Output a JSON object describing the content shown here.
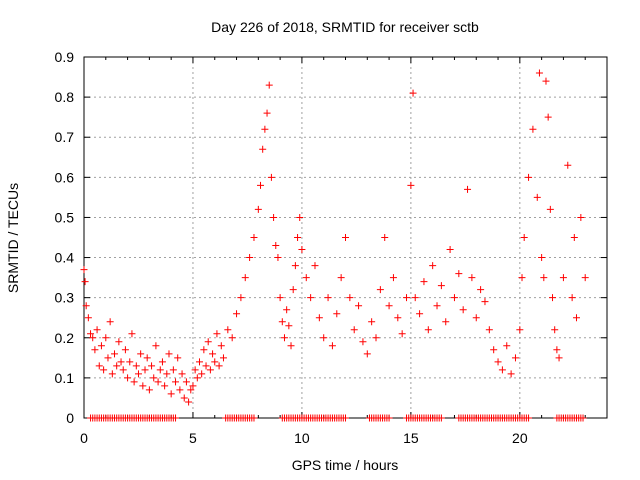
{
  "chart_data": {
    "type": "scatter",
    "title": "Day 226 of 2018, SRMTID for receiver sctb",
    "xlabel": "GPS time / hours",
    "ylabel": "SRMTID / TECUs",
    "xlim": [
      0,
      24
    ],
    "ylim": [
      0,
      0.9
    ],
    "x_ticks": [
      0,
      5,
      10,
      15,
      20
    ],
    "x_tick_labels": [
      "0",
      "5",
      "10",
      "15",
      "20"
    ],
    "y_ticks": [
      0,
      0.1,
      0.2,
      0.3,
      0.4,
      0.5,
      0.6,
      0.7,
      0.8,
      0.9
    ],
    "y_tick_labels": [
      "0",
      "0.1",
      "0.2",
      "0.3",
      "0.4",
      "0.5",
      "0.6",
      "0.7",
      "0.8",
      "0.9"
    ],
    "grid": true,
    "marker": "+",
    "series": [
      {
        "name": "SRMTID",
        "color": "#ff0000",
        "points": [
          [
            0.0,
            0.37
          ],
          [
            0.05,
            0.34
          ],
          [
            0.1,
            0.28
          ],
          [
            0.2,
            0.25
          ],
          [
            0.3,
            0.21
          ],
          [
            0.4,
            0.2
          ],
          [
            0.5,
            0.17
          ],
          [
            0.6,
            0.22
          ],
          [
            0.7,
            0.13
          ],
          [
            0.8,
            0.18
          ],
          [
            0.9,
            0.12
          ],
          [
            1.0,
            0.2
          ],
          [
            1.1,
            0.15
          ],
          [
            1.2,
            0.24
          ],
          [
            1.3,
            0.11
          ],
          [
            1.4,
            0.16
          ],
          [
            1.5,
            0.13
          ],
          [
            1.6,
            0.19
          ],
          [
            1.7,
            0.14
          ],
          [
            1.8,
            0.12
          ],
          [
            1.9,
            0.17
          ],
          [
            2.0,
            0.1
          ],
          [
            2.1,
            0.14
          ],
          [
            2.2,
            0.21
          ],
          [
            2.3,
            0.09
          ],
          [
            2.4,
            0.13
          ],
          [
            2.5,
            0.11
          ],
          [
            2.6,
            0.16
          ],
          [
            2.7,
            0.08
          ],
          [
            2.8,
            0.12
          ],
          [
            2.9,
            0.15
          ],
          [
            3.0,
            0.07
          ],
          [
            3.1,
            0.13
          ],
          [
            3.2,
            0.1
          ],
          [
            3.3,
            0.18
          ],
          [
            3.4,
            0.09
          ],
          [
            3.5,
            0.12
          ],
          [
            3.6,
            0.14
          ],
          [
            3.7,
            0.08
          ],
          [
            3.8,
            0.11
          ],
          [
            3.9,
            0.16
          ],
          [
            4.0,
            0.06
          ],
          [
            4.1,
            0.12
          ],
          [
            4.2,
            0.09
          ],
          [
            4.3,
            0.15
          ],
          [
            4.4,
            0.07
          ],
          [
            4.5,
            0.11
          ],
          [
            4.6,
            0.05
          ],
          [
            4.7,
            0.09
          ],
          [
            4.8,
            0.04
          ],
          [
            4.9,
            0.07
          ],
          [
            5.0,
            0.08
          ],
          [
            5.1,
            0.12
          ],
          [
            5.2,
            0.1
          ],
          [
            5.3,
            0.14
          ],
          [
            5.4,
            0.11
          ],
          [
            5.5,
            0.17
          ],
          [
            5.6,
            0.13
          ],
          [
            5.7,
            0.19
          ],
          [
            5.8,
            0.12
          ],
          [
            5.9,
            0.16
          ],
          [
            6.0,
            0.14
          ],
          [
            6.1,
            0.21
          ],
          [
            6.2,
            0.13
          ],
          [
            6.3,
            0.18
          ],
          [
            6.4,
            0.15
          ],
          [
            6.6,
            0.22
          ],
          [
            6.8,
            0.2
          ],
          [
            7.0,
            0.26
          ],
          [
            7.2,
            0.3
          ],
          [
            7.4,
            0.35
          ],
          [
            7.6,
            0.4
          ],
          [
            7.8,
            0.45
          ],
          [
            8.0,
            0.52
          ],
          [
            8.1,
            0.58
          ],
          [
            8.2,
            0.67
          ],
          [
            8.3,
            0.72
          ],
          [
            8.4,
            0.76
          ],
          [
            8.5,
            0.83
          ],
          [
            8.6,
            0.6
          ],
          [
            8.7,
            0.5
          ],
          [
            8.8,
            0.43
          ],
          [
            8.9,
            0.4
          ],
          [
            9.0,
            0.3
          ],
          [
            9.1,
            0.24
          ],
          [
            9.2,
            0.2
          ],
          [
            9.3,
            0.27
          ],
          [
            9.4,
            0.23
          ],
          [
            9.5,
            0.18
          ],
          [
            9.6,
            0.32
          ],
          [
            9.7,
            0.38
          ],
          [
            9.8,
            0.45
          ],
          [
            9.9,
            0.5
          ],
          [
            10.0,
            0.42
          ],
          [
            10.2,
            0.35
          ],
          [
            10.4,
            0.3
          ],
          [
            10.6,
            0.38
          ],
          [
            10.8,
            0.25
          ],
          [
            11.0,
            0.2
          ],
          [
            11.2,
            0.3
          ],
          [
            11.4,
            0.18
          ],
          [
            11.6,
            0.26
          ],
          [
            11.8,
            0.35
          ],
          [
            12.0,
            0.45
          ],
          [
            12.2,
            0.3
          ],
          [
            12.4,
            0.22
          ],
          [
            12.6,
            0.28
          ],
          [
            12.8,
            0.19
          ],
          [
            13.0,
            0.16
          ],
          [
            13.2,
            0.24
          ],
          [
            13.4,
            0.2
          ],
          [
            13.6,
            0.32
          ],
          [
            13.8,
            0.45
          ],
          [
            14.0,
            0.28
          ],
          [
            14.2,
            0.35
          ],
          [
            14.4,
            0.25
          ],
          [
            14.6,
            0.21
          ],
          [
            14.8,
            0.3
          ],
          [
            15.0,
            0.58
          ],
          [
            15.1,
            0.81
          ],
          [
            15.2,
            0.3
          ],
          [
            15.4,
            0.26
          ],
          [
            15.6,
            0.34
          ],
          [
            15.8,
            0.22
          ],
          [
            16.0,
            0.38
          ],
          [
            16.2,
            0.28
          ],
          [
            16.4,
            0.33
          ],
          [
            16.6,
            0.24
          ],
          [
            16.8,
            0.42
          ],
          [
            17.0,
            0.3
          ],
          [
            17.2,
            0.36
          ],
          [
            17.4,
            0.27
          ],
          [
            17.6,
            0.57
          ],
          [
            17.8,
            0.35
          ],
          [
            18.0,
            0.25
          ],
          [
            18.2,
            0.32
          ],
          [
            18.4,
            0.29
          ],
          [
            18.6,
            0.22
          ],
          [
            18.8,
            0.17
          ],
          [
            19.0,
            0.14
          ],
          [
            19.2,
            0.12
          ],
          [
            19.4,
            0.18
          ],
          [
            19.6,
            0.11
          ],
          [
            19.8,
            0.15
          ],
          [
            20.0,
            0.22
          ],
          [
            20.1,
            0.35
          ],
          [
            20.2,
            0.45
          ],
          [
            20.4,
            0.6
          ],
          [
            20.6,
            0.72
          ],
          [
            20.8,
            0.55
          ],
          [
            20.9,
            0.86
          ],
          [
            21.0,
            0.4
          ],
          [
            21.1,
            0.35
          ],
          [
            21.2,
            0.84
          ],
          [
            21.3,
            0.75
          ],
          [
            21.4,
            0.52
          ],
          [
            21.5,
            0.3
          ],
          [
            21.6,
            0.22
          ],
          [
            21.7,
            0.17
          ],
          [
            21.8,
            0.15
          ],
          [
            22.0,
            0.35
          ],
          [
            22.2,
            0.63
          ],
          [
            22.4,
            0.3
          ],
          [
            22.5,
            0.45
          ],
          [
            22.6,
            0.25
          ],
          [
            22.8,
            0.5
          ],
          [
            23.0,
            0.35
          ]
        ]
      }
    ],
    "zero_band_x_ranges": [
      [
        0.3,
        4.2
      ],
      [
        6.5,
        7.8
      ],
      [
        9.1,
        12.0
      ],
      [
        13.1,
        14.0
      ],
      [
        14.8,
        16.4
      ],
      [
        17.2,
        20.4
      ],
      [
        21.7,
        22.9
      ]
    ]
  }
}
